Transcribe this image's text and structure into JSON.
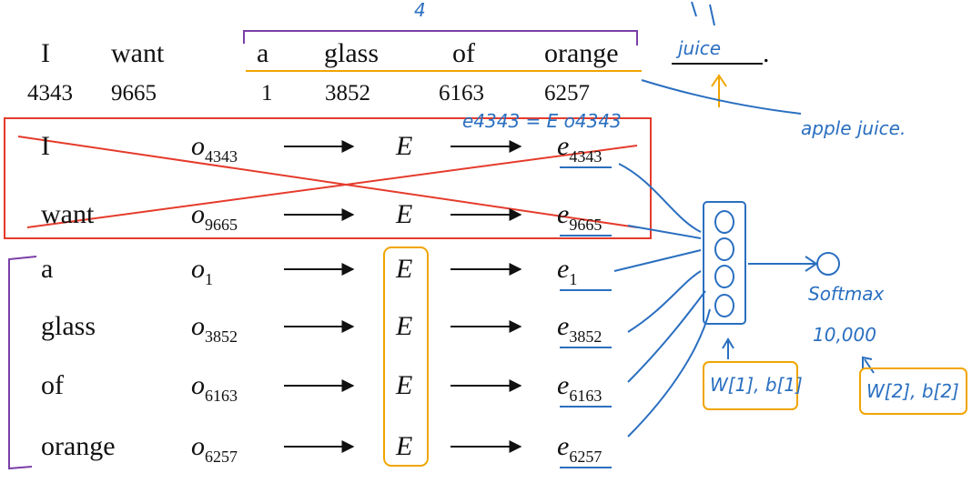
{
  "sentence": {
    "words": [
      "I",
      "want",
      "a",
      "glass",
      "of",
      "orange"
    ],
    "indices": [
      4343,
      9665,
      1,
      3852,
      6163,
      6257
    ],
    "target": "juice",
    "period": "."
  },
  "rows": [
    {
      "word": "I",
      "onehot": {
        "base": "o",
        "sub": "4343"
      },
      "matrix": "E",
      "embedding": {
        "base": "e",
        "sub": "4343"
      }
    },
    {
      "word": "want",
      "onehot": {
        "base": "o",
        "sub": "9665"
      },
      "matrix": "E",
      "embedding": {
        "base": "e",
        "sub": "9665"
      }
    },
    {
      "word": "a",
      "onehot": {
        "base": "o",
        "sub": "1"
      },
      "matrix": "E",
      "embedding": {
        "base": "e",
        "sub": "1"
      }
    },
    {
      "word": "glass",
      "onehot": {
        "base": "o",
        "sub": "3852"
      },
      "matrix": "E",
      "embedding": {
        "base": "e",
        "sub": "3852"
      }
    },
    {
      "word": "of",
      "onehot": {
        "base": "o",
        "sub": "6163"
      },
      "matrix": "E",
      "embedding": {
        "base": "e",
        "sub": "6163"
      }
    },
    {
      "word": "orange",
      "onehot": {
        "base": "o",
        "sub": "6257"
      },
      "matrix": "E",
      "embedding": {
        "base": "e",
        "sub": "6257"
      }
    }
  ],
  "annotations": {
    "count": "4",
    "equation": "e4343 = E o4343",
    "alternative": "apple juice.",
    "softmax": "Softmax",
    "vocab": "10,000",
    "layer1": "W[1], b[1]",
    "layer2": "W[2], b[2]"
  }
}
